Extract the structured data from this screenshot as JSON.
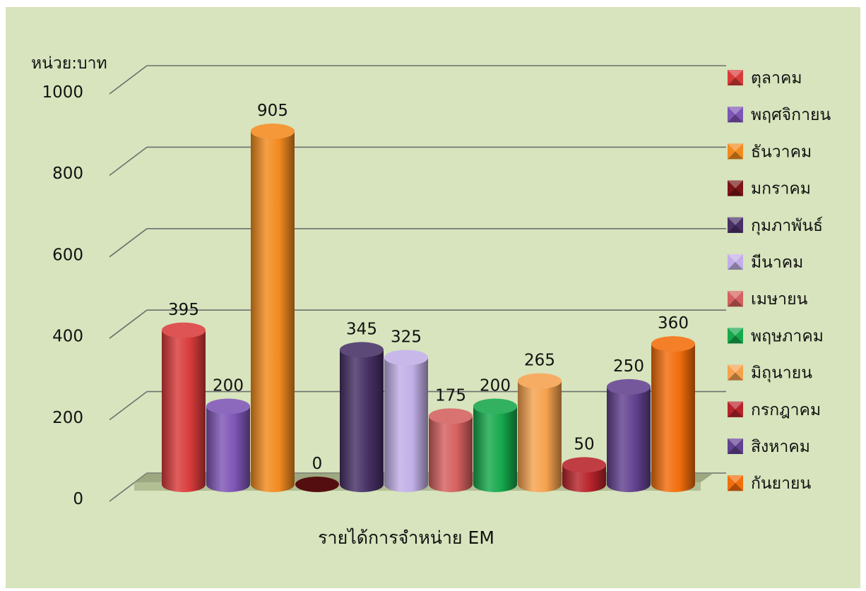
{
  "chart_data": {
    "type": "bar",
    "unit_label": "หน่วย:บาท",
    "xlabel": "รายได้การจำหน่าย EM",
    "ylim": [
      0,
      1000
    ],
    "yticks": [
      "0",
      "200",
      "400",
      "600",
      "800",
      "1000"
    ],
    "grid": true,
    "legend_position": "right",
    "series": [
      {
        "name": "ตุลาคม",
        "value": 395,
        "label": "395",
        "color": "#d93b3b"
      },
      {
        "name": "พฤศจิกายน",
        "value": 200,
        "label": "200",
        "color": "#7e55b5"
      },
      {
        "name": "ธันวาคม",
        "value": 905,
        "label": "905",
        "color": "#f28a1e"
      },
      {
        "name": "มกราคม",
        "value": 0,
        "label": "0",
        "color": "#7a1416"
      },
      {
        "name": "กุมภาพันธ์",
        "value": 345,
        "label": "345",
        "color": "#473065"
      },
      {
        "name": "มีนาคม",
        "value": 325,
        "label": "325",
        "color": "#c1aee6"
      },
      {
        "name": "เมษายน",
        "value": 175,
        "label": "175",
        "color": "#d4605f"
      },
      {
        "name": "พฤษภาคม",
        "value": 200,
        "label": "200",
        "color": "#16a84c"
      },
      {
        "name": "มิถุนายน",
        "value": 265,
        "label": "265",
        "color": "#f5a24e"
      },
      {
        "name": "กรกฎาคม",
        "value": 50,
        "label": "50",
        "color": "#b7232a"
      },
      {
        "name": "สิงหาคม",
        "value": 250,
        "label": "250",
        "color": "#62418f"
      },
      {
        "name": "กันยายน",
        "value": 360,
        "label": "360",
        "color": "#f26d0b"
      }
    ]
  }
}
